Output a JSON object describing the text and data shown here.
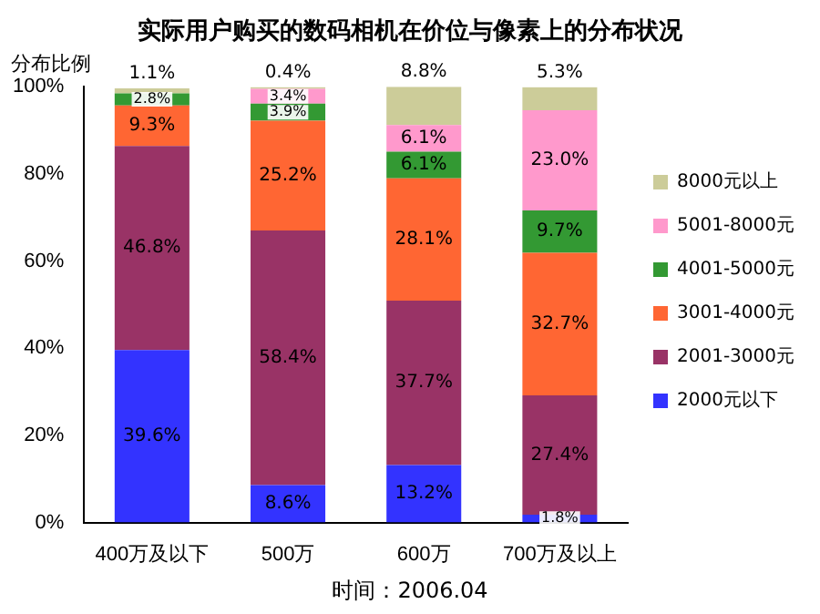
{
  "chart_data": {
    "type": "bar",
    "stacked": true,
    "title": "实际用户购买的数码相机在价位与像素上的分布状况",
    "ylabel": "分布比例",
    "categories": [
      "400万及以下",
      "500万",
      "600万",
      "700万及以上"
    ],
    "ylim": [
      0,
      100
    ],
    "yticks": [
      {
        "value": 0,
        "label": "0%"
      },
      {
        "value": 20,
        "label": "20%"
      },
      {
        "value": 40,
        "label": "40%"
      },
      {
        "value": 60,
        "label": "60%"
      },
      {
        "value": 80,
        "label": "80%"
      },
      {
        "value": 100,
        "label": "100%"
      }
    ],
    "grid": false,
    "legend": "right",
    "series": [
      {
        "name": "2000元以下",
        "color": "#3333ff",
        "values": [
          39.6,
          8.6,
          13.2,
          1.8
        ],
        "value_labels": [
          "39.6%",
          "8.6%",
          "13.2%",
          "1.8%"
        ]
      },
      {
        "name": "2001-3000元",
        "color": "#993366",
        "values": [
          46.8,
          58.4,
          37.7,
          27.4
        ],
        "value_labels": [
          "46.8%",
          "58.4%",
          "37.7%",
          "27.4%"
        ]
      },
      {
        "name": "3001-4000元",
        "color": "#ff6633",
        "values": [
          9.3,
          25.2,
          28.1,
          32.7
        ],
        "value_labels": [
          "9.3%",
          "25.2%",
          "28.1%",
          "32.7%"
        ]
      },
      {
        "name": "4001-5000元",
        "color": "#339933",
        "values": [
          2.8,
          3.9,
          6.1,
          9.7
        ],
        "value_labels": [
          "2.8%",
          "3.9%",
          "6.1%",
          "9.7%"
        ]
      },
      {
        "name": "5001-8000元",
        "color": "#ff99cc",
        "values": [
          null,
          3.4,
          6.1,
          23.0
        ],
        "value_labels": [
          null,
          "3.4%",
          "6.1%",
          "23.0%"
        ]
      },
      {
        "name": "8000元以上",
        "color": "#cccc99",
        "values": [
          1.1,
          0.4,
          8.8,
          5.3
        ],
        "value_labels": [
          "1.1%",
          "0.4%",
          "8.8%",
          "5.3%"
        ]
      }
    ],
    "annotations": [
      "时间：2006.04"
    ]
  }
}
